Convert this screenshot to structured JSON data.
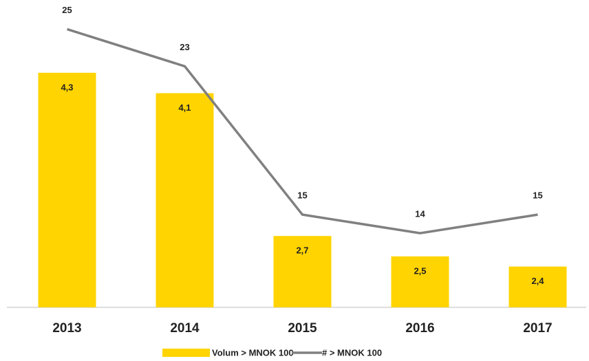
{
  "chart_data": {
    "type": "bar-line",
    "categories": [
      "2013",
      "2014",
      "2015",
      "2016",
      "2017"
    ],
    "series": [
      {
        "name": "Volum > MNOK 100",
        "type": "bar",
        "color": "#ffd400",
        "values": [
          4.3,
          4.1,
          2.7,
          2.5,
          2.4
        ],
        "value_labels": [
          "4,3",
          "4,1",
          "2,7",
          "2,5",
          "2,4"
        ]
      },
      {
        "name": "# > MNOK 100",
        "type": "line",
        "axis": "y2",
        "color": "#808080",
        "values": [
          25,
          23,
          15,
          14,
          15
        ]
      }
    ],
    "ylim": [
      2,
      5
    ],
    "y2lim": [
      10,
      26.5
    ],
    "legend": "bottom"
  }
}
